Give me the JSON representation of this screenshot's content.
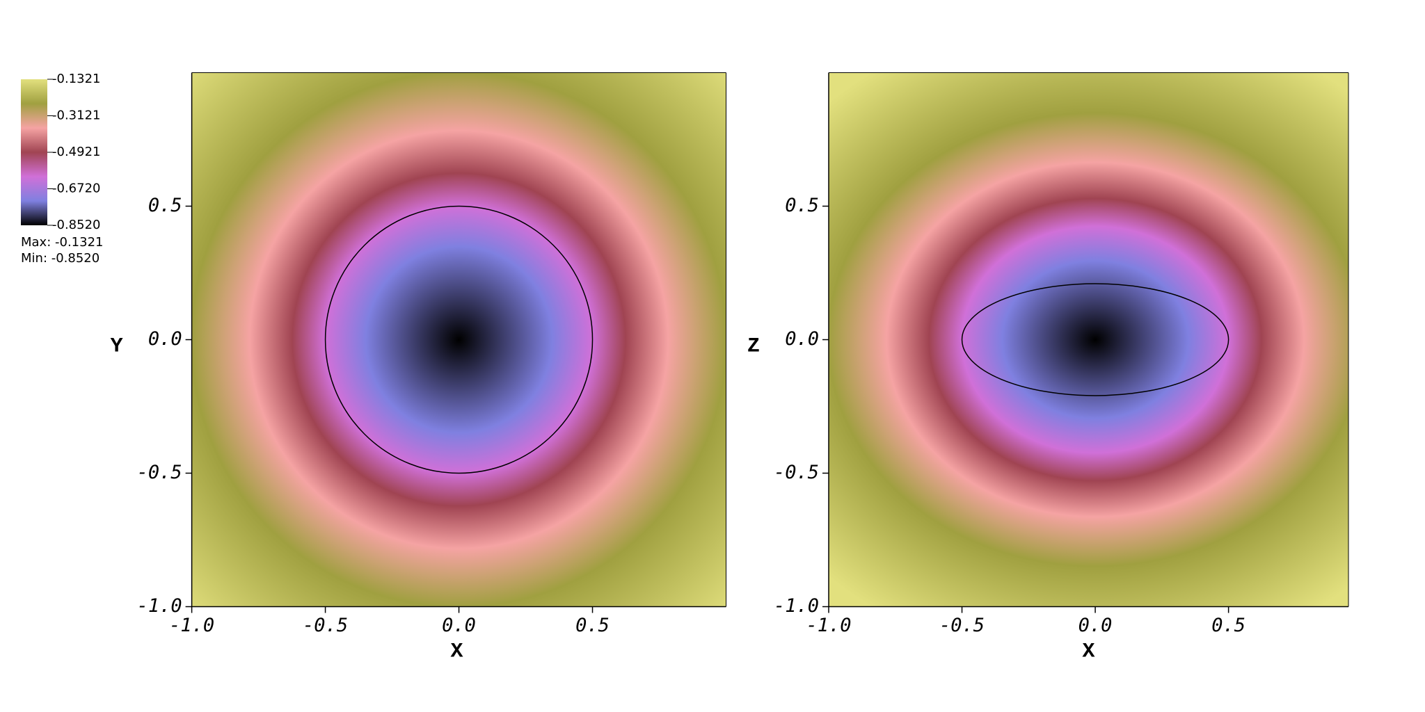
{
  "chart_data": [
    {
      "type": "pseudocolor",
      "xlabel": "X",
      "ylabel": "Y",
      "xlim": [
        -1,
        1
      ],
      "ylim": [
        -1,
        1
      ],
      "xticks": [
        {
          "value": -1,
          "label": "-1.0"
        },
        {
          "value": -0.5,
          "label": "-0.5"
        },
        {
          "value": 0,
          "label": "0.0"
        },
        {
          "value": 0.5,
          "label": "0.5"
        }
      ],
      "yticks": [
        {
          "value": -1,
          "label": "-1.0"
        },
        {
          "value": -0.5,
          "label": "-0.5"
        },
        {
          "value": 0,
          "label": "0.0"
        },
        {
          "value": 0.5,
          "label": "0.5"
        }
      ],
      "contour": {
        "rx": 0.5,
        "ry": 0.5
      }
    },
    {
      "type": "pseudocolor",
      "xlabel": "X",
      "ylabel": "Z",
      "xlim": [
        -1,
        0.95
      ],
      "ylim": [
        -1,
        1
      ],
      "xticks": [
        {
          "value": -1,
          "label": "-1.0"
        },
        {
          "value": -0.5,
          "label": "-0.5"
        },
        {
          "value": 0,
          "label": "0.0"
        },
        {
          "value": 0.5,
          "label": "0.5"
        }
      ],
      "yticks": [
        {
          "value": -1,
          "label": "-1.0"
        },
        {
          "value": -0.5,
          "label": "-0.5"
        },
        {
          "value": 0,
          "label": "0.0"
        },
        {
          "value": 0.5,
          "label": "0.5"
        }
      ],
      "contour": {
        "rx": 0.5,
        "ry": 0.21
      }
    }
  ],
  "legend": {
    "colormap": [
      "#000000",
      "#7f80e0",
      "#d070d8",
      "#a04452",
      "#f5a3a3",
      "#a0a040",
      "#e2e07e"
    ],
    "ticks": [
      {
        "value": -0.1321,
        "label": "-0.1321"
      },
      {
        "value": -0.3121,
        "label": "-0.3121"
      },
      {
        "value": -0.4921,
        "label": "-0.4921"
      },
      {
        "value": -0.672,
        "label": "-0.6720"
      },
      {
        "value": -0.852,
        "label": "-0.8520"
      }
    ],
    "max": {
      "value": -0.1321,
      "label": "Max: -0.1321"
    },
    "min": {
      "value": -0.852,
      "label": "Min: -0.8520"
    }
  }
}
